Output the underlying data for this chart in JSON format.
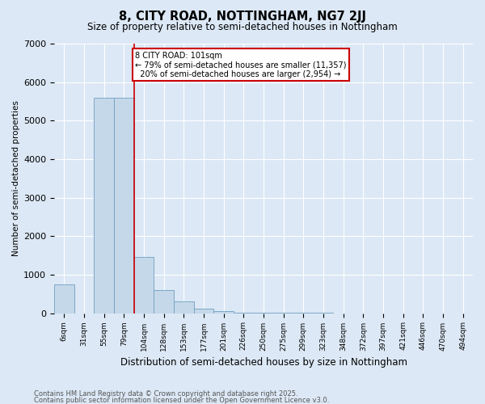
{
  "title": "8, CITY ROAD, NOTTINGHAM, NG7 2JJ",
  "subtitle": "Size of property relative to semi-detached houses in Nottingham",
  "xlabel": "Distribution of semi-detached houses by size in Nottingham",
  "ylabel": "Number of semi-detached properties",
  "property_label": "8 CITY ROAD: 101sqm",
  "pct_smaller": 79,
  "pct_larger": 20,
  "n_smaller": 11357,
  "n_larger": 2954,
  "vline_color": "#cc0000",
  "bar_color": "#c5d8ea",
  "bar_edge_color": "#6fa0c0",
  "categories": [
    "6sqm",
    "31sqm",
    "55sqm",
    "79sqm",
    "104sqm",
    "128sqm",
    "153sqm",
    "177sqm",
    "201sqm",
    "226sqm",
    "250sqm",
    "275sqm",
    "299sqm",
    "323sqm",
    "348sqm",
    "372sqm",
    "397sqm",
    "421sqm",
    "446sqm",
    "470sqm",
    "494sqm"
  ],
  "values": [
    750,
    0,
    5600,
    5600,
    1450,
    600,
    300,
    120,
    50,
    20,
    10,
    5,
    3,
    2,
    1,
    1,
    0,
    0,
    0,
    0,
    0
  ],
  "ylim": [
    0,
    7000
  ],
  "yticks": [
    0,
    1000,
    2000,
    3000,
    4000,
    5000,
    6000,
    7000
  ],
  "background_color": "#dce8f5",
  "grid_color": "#ffffff",
  "footer_line1": "Contains HM Land Registry data © Crown copyright and database right 2025.",
  "footer_line2": "Contains public sector information licensed under the Open Government Licence v3.0.",
  "vline_x": 3.5
}
